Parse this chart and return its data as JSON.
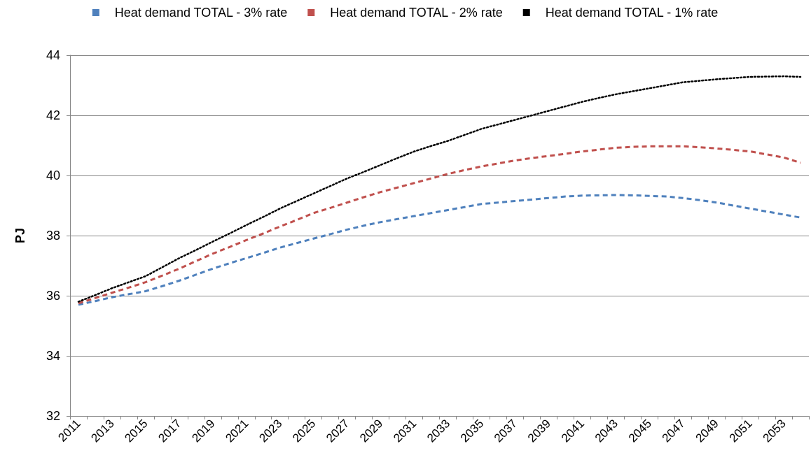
{
  "chart_data": {
    "type": "line",
    "ylabel": "PJ",
    "categories": [
      "2011",
      null,
      "2013",
      null,
      "2015",
      null,
      "2017",
      null,
      "2019",
      null,
      "2021",
      null,
      "2023",
      null,
      "2025",
      null,
      "2027",
      null,
      "2029",
      null,
      "2031",
      null,
      "2033",
      null,
      "2035",
      null,
      "2037",
      null,
      "2039",
      null,
      "2041",
      null,
      "2043",
      null,
      "2045",
      null,
      "2047",
      null,
      "2049",
      null,
      "2051",
      null,
      "2053",
      null
    ],
    "ylim": [
      32,
      44
    ],
    "yticks": [
      32,
      34,
      36,
      38,
      40,
      42,
      44
    ],
    "grid": "y",
    "legend": "top",
    "marker": "none",
    "series": [
      {
        "name": "Heat demand TOTAL - 3% rate",
        "color": "#4f81bd",
        "line_style": "dashed",
        "values": [
          35.7,
          35.82,
          35.95,
          36.05,
          36.15,
          36.32,
          36.5,
          36.7,
          36.9,
          37.08,
          37.25,
          37.42,
          37.6,
          37.75,
          37.9,
          38.05,
          38.2,
          38.33,
          38.45,
          38.55,
          38.65,
          38.75,
          38.85,
          38.95,
          39.05,
          39.1,
          39.15,
          39.2,
          39.25,
          39.3,
          39.33,
          39.34,
          39.35,
          39.34,
          39.32,
          39.3,
          39.25,
          39.18,
          39.1,
          39.0,
          38.9,
          38.8,
          38.7,
          38.6
        ]
      },
      {
        "name": "Heat demand TOTAL - 2% rate",
        "color": "#c0504d",
        "line_style": "dashed",
        "values": [
          35.75,
          35.92,
          36.1,
          36.27,
          36.45,
          36.67,
          36.9,
          37.15,
          37.4,
          37.62,
          37.85,
          38.07,
          38.3,
          38.52,
          38.75,
          38.92,
          39.1,
          39.28,
          39.45,
          39.6,
          39.75,
          39.9,
          40.05,
          40.18,
          40.3,
          40.4,
          40.5,
          40.58,
          40.65,
          40.72,
          40.8,
          40.86,
          40.92,
          40.95,
          40.97,
          40.97,
          40.97,
          40.94,
          40.9,
          40.85,
          40.8,
          40.7,
          40.6,
          40.42
        ]
      },
      {
        "name": "Heat demand TOTAL - 1% rate",
        "color": "#000000",
        "line_style": "dotted",
        "values": [
          35.8,
          36.02,
          36.25,
          36.45,
          36.65,
          36.95,
          37.25,
          37.52,
          37.8,
          38.07,
          38.35,
          38.62,
          38.9,
          39.15,
          39.4,
          39.65,
          39.9,
          40.12,
          40.35,
          40.58,
          40.8,
          40.98,
          41.15,
          41.35,
          41.55,
          41.7,
          41.85,
          42.0,
          42.15,
          42.3,
          42.45,
          42.58,
          42.7,
          42.8,
          42.9,
          43.0,
          43.1,
          43.15,
          43.2,
          43.24,
          43.28,
          43.29,
          43.3,
          43.28
        ]
      }
    ]
  }
}
